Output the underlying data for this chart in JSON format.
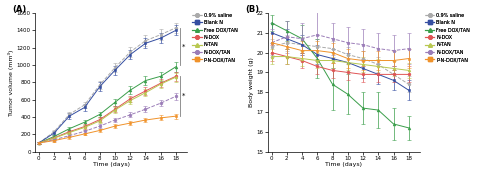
{
  "days": [
    0,
    2,
    4,
    6,
    8,
    10,
    12,
    14,
    16,
    18
  ],
  "tumor": {
    "saline": [
      100,
      230,
      430,
      540,
      770,
      970,
      1150,
      1280,
      1350,
      1430
    ],
    "blank_n": [
      100,
      215,
      410,
      510,
      750,
      940,
      1120,
      1250,
      1310,
      1400
    ],
    "free_dox": [
      100,
      175,
      265,
      340,
      430,
      570,
      710,
      820,
      870,
      980
    ],
    "n_dox": [
      100,
      160,
      230,
      290,
      370,
      490,
      610,
      700,
      790,
      870
    ],
    "n_tan": [
      100,
      155,
      220,
      280,
      355,
      480,
      590,
      680,
      780,
      860
    ],
    "n_dox_tan": [
      100,
      138,
      185,
      235,
      295,
      365,
      425,
      490,
      560,
      640
    ],
    "pn_dox_tan": [
      100,
      128,
      165,
      205,
      245,
      295,
      330,
      365,
      390,
      410
    ]
  },
  "tumor_err": {
    "saline": [
      8,
      22,
      32,
      38,
      48,
      52,
      58,
      60,
      62,
      58
    ],
    "blank_n": [
      8,
      22,
      32,
      38,
      48,
      52,
      52,
      58,
      62,
      58
    ],
    "free_dox": [
      8,
      18,
      22,
      28,
      32,
      38,
      48,
      52,
      52,
      58
    ],
    "n_dox": [
      8,
      16,
      20,
      26,
      28,
      32,
      38,
      42,
      48,
      52
    ],
    "n_tan": [
      8,
      16,
      20,
      26,
      28,
      32,
      38,
      42,
      48,
      52
    ],
    "n_dox_tan": [
      8,
      13,
      16,
      20,
      23,
      26,
      30,
      34,
      38,
      42
    ],
    "pn_dox_tan": [
      8,
      11,
      13,
      16,
      18,
      20,
      23,
      26,
      28,
      30
    ]
  },
  "bw": {
    "saline": [
      20.3,
      20.5,
      20.4,
      20.3,
      20.2,
      19.9,
      19.7,
      19.4,
      18.9,
      18.4
    ],
    "blank_n": [
      21.0,
      20.7,
      20.4,
      19.9,
      19.7,
      19.5,
      19.2,
      18.9,
      18.6,
      18.1
    ],
    "free_dox": [
      21.5,
      21.1,
      20.7,
      19.7,
      18.4,
      17.9,
      17.2,
      17.1,
      16.4,
      16.2
    ],
    "n_dox": [
      20.0,
      19.8,
      19.6,
      19.3,
      19.1,
      19.0,
      18.9,
      18.9,
      18.9,
      18.9
    ],
    "n_tan": [
      19.8,
      19.8,
      19.7,
      19.6,
      19.6,
      19.5,
      19.4,
      19.3,
      19.2,
      19.1
    ],
    "n_dox_tan": [
      20.5,
      20.8,
      20.7,
      20.9,
      20.7,
      20.5,
      20.4,
      20.2,
      20.1,
      20.2
    ],
    "pn_dox_tan": [
      20.5,
      20.3,
      20.1,
      20.1,
      20.0,
      19.7,
      19.6,
      19.6,
      19.6,
      19.7
    ]
  },
  "bw_err": {
    "saline": [
      0.4,
      0.4,
      0.4,
      0.4,
      0.4,
      0.4,
      0.4,
      0.4,
      0.4,
      0.4
    ],
    "blank_n": [
      0.5,
      0.5,
      0.5,
      0.5,
      0.5,
      0.5,
      0.5,
      0.5,
      0.5,
      0.5
    ],
    "free_dox": [
      0.4,
      0.5,
      0.7,
      1.0,
      1.3,
      1.0,
      0.8,
      0.9,
      0.8,
      0.6
    ],
    "n_dox": [
      0.4,
      0.4,
      0.4,
      0.4,
      0.4,
      0.4,
      0.4,
      0.4,
      0.4,
      0.4
    ],
    "n_tan": [
      0.4,
      0.4,
      0.4,
      0.4,
      0.4,
      0.4,
      0.4,
      0.4,
      0.4,
      0.4
    ],
    "n_dox_tan": [
      0.7,
      0.8,
      0.8,
      1.3,
      0.8,
      0.8,
      0.8,
      0.8,
      0.8,
      0.8
    ],
    "pn_dox_tan": [
      0.5,
      0.5,
      0.5,
      0.5,
      0.5,
      0.5,
      0.5,
      0.5,
      0.5,
      0.5
    ]
  },
  "colors": {
    "saline": "#aaaaaa",
    "blank_n": "#354ea1",
    "free_dox": "#3a9e4a",
    "n_dox": "#e05555",
    "n_tan": "#b8c850",
    "n_dox_tan": "#9b7db8",
    "pn_dox_tan": "#f0922a"
  },
  "markers": {
    "saline": "o",
    "blank_n": "s",
    "free_dox": "^",
    "n_dox": "o",
    "n_tan": "^",
    "n_dox_tan": "o",
    "pn_dox_tan": "s"
  },
  "linestyles": {
    "saline": "--",
    "blank_n": "-",
    "free_dox": "-",
    "n_dox": "-",
    "n_tan": "-",
    "n_dox_tan": "--",
    "pn_dox_tan": "-"
  },
  "labels": {
    "saline": "0.9% saline",
    "blank_n": "Blank N",
    "free_dox": "Free DOX/TAN",
    "n_dox": "N-DOX",
    "n_tan": "N-TAN",
    "n_dox_tan": "N-DOX/TAN",
    "pn_dox_tan": "P-N-DOX/TAN"
  }
}
